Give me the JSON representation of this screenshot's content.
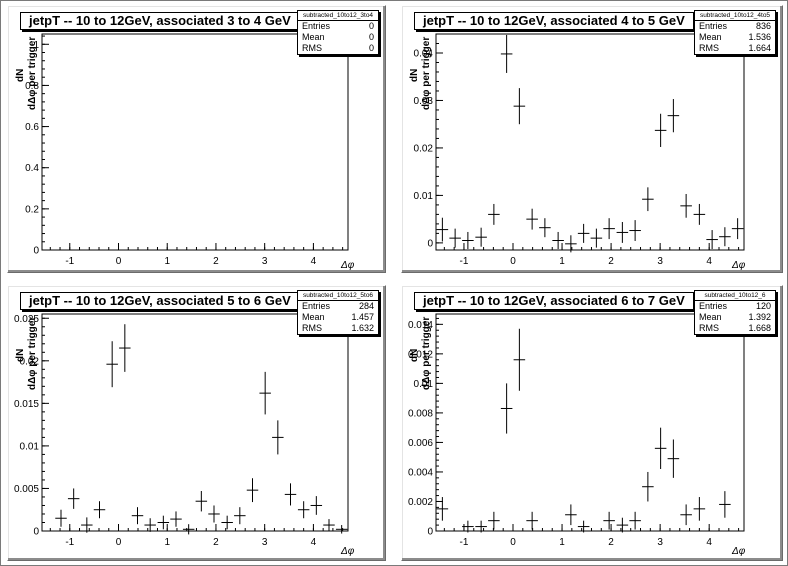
{
  "ylabel": {
    "numerator": "dN",
    "denominator": "dΔφ per trigger"
  },
  "xlabel": "Δφ",
  "stat_labels": {
    "entries": "Entries",
    "mean": "Mean",
    "rms": "RMS"
  },
  "chart_data": [
    {
      "type": "scatter",
      "title": "jetpT -- 10 to 12GeV, associated 3 to 4 GeV",
      "hist_name": "subtracted_10to12_3to4",
      "stats": {
        "entries": "0",
        "mean": "0",
        "rms": "0"
      },
      "xlim": [
        -1.57,
        4.71
      ],
      "ylim": [
        0,
        1.05
      ],
      "xticks": [
        "-1",
        "0",
        "1",
        "2",
        "3",
        "4"
      ],
      "xtick_values": [
        -1,
        0,
        1,
        2,
        3,
        4
      ],
      "yticks": [
        "0",
        "0.2",
        "0.4",
        "0.6",
        "0.8",
        "1"
      ],
      "ytick_values": [
        0,
        0.2,
        0.4,
        0.6,
        0.8,
        1
      ],
      "points": []
    },
    {
      "type": "scatter",
      "title": "jetpT -- 10 to 12GeV, associated 4 to 5 GeV",
      "hist_name": "subtracted_10to12_4to5",
      "stats": {
        "entries": "836",
        "mean": "1.536",
        "rms": "1.664"
      },
      "xlim": [
        -1.57,
        4.71
      ],
      "ylim": [
        -0.0015,
        0.044
      ],
      "xticks": [
        "-1",
        "0",
        "1",
        "2",
        "3",
        "4"
      ],
      "xtick_values": [
        -1,
        0,
        1,
        2,
        3,
        4
      ],
      "yticks": [
        "0",
        "0.01",
        "0.02",
        "0.03",
        "0.04"
      ],
      "ytick_values": [
        0,
        0.01,
        0.02,
        0.03,
        0.04
      ],
      "points": [
        {
          "x": -1.44,
          "y": 0.0028,
          "err": 0.0025
        },
        {
          "x": -1.18,
          "y": 0.001,
          "err": 0.002
        },
        {
          "x": -0.92,
          "y": 0.0005,
          "err": 0.0018
        },
        {
          "x": -0.65,
          "y": 0.0012,
          "err": 0.002
        },
        {
          "x": -0.39,
          "y": 0.006,
          "err": 0.0022
        },
        {
          "x": -0.13,
          "y": 0.0398,
          "err": 0.004
        },
        {
          "x": 0.13,
          "y": 0.0288,
          "err": 0.0038
        },
        {
          "x": 0.39,
          "y": 0.005,
          "err": 0.0022
        },
        {
          "x": 0.65,
          "y": 0.0032,
          "err": 0.002
        },
        {
          "x": 0.92,
          "y": 0.0005,
          "err": 0.0018
        },
        {
          "x": 1.18,
          "y": -0.0002,
          "err": 0.0018
        },
        {
          "x": 1.44,
          "y": 0.002,
          "err": 0.002
        },
        {
          "x": 1.7,
          "y": 0.001,
          "err": 0.002
        },
        {
          "x": 1.96,
          "y": 0.003,
          "err": 0.0022
        },
        {
          "x": 2.23,
          "y": 0.0022,
          "err": 0.0022
        },
        {
          "x": 2.49,
          "y": 0.0026,
          "err": 0.0022
        },
        {
          "x": 2.75,
          "y": 0.0092,
          "err": 0.0025
        },
        {
          "x": 3.01,
          "y": 0.0237,
          "err": 0.0035
        },
        {
          "x": 3.27,
          "y": 0.0268,
          "err": 0.0035
        },
        {
          "x": 3.53,
          "y": 0.0078,
          "err": 0.0025
        },
        {
          "x": 3.8,
          "y": 0.006,
          "err": 0.0022
        },
        {
          "x": 4.06,
          "y": 0.0007,
          "err": 0.002
        },
        {
          "x": 4.32,
          "y": 0.0013,
          "err": 0.002
        },
        {
          "x": 4.58,
          "y": 0.003,
          "err": 0.0022
        }
      ]
    },
    {
      "type": "scatter",
      "title": "jetpT -- 10 to 12GeV, associated 5 to 6 GeV",
      "hist_name": "subtracted_10to12_5to6",
      "stats": {
        "entries": "284",
        "mean": "1.457",
        "rms": "1.632"
      },
      "xlim": [
        -1.57,
        4.71
      ],
      "ylim": [
        0,
        0.0255
      ],
      "xticks": [
        "-1",
        "0",
        "1",
        "2",
        "3",
        "4"
      ],
      "xtick_values": [
        -1,
        0,
        1,
        2,
        3,
        4
      ],
      "yticks": [
        "0",
        "0.005",
        "0.01",
        "0.015",
        "0.02",
        "0.025"
      ],
      "ytick_values": [
        0,
        0.005,
        0.01,
        0.015,
        0.02,
        0.025
      ],
      "points": [
        {
          "x": -1.18,
          "y": 0.0015,
          "err": 0.001
        },
        {
          "x": -0.92,
          "y": 0.0038,
          "err": 0.0012
        },
        {
          "x": -0.65,
          "y": 0.0007,
          "err": 0.0009
        },
        {
          "x": -0.39,
          "y": 0.0025,
          "err": 0.001
        },
        {
          "x": -0.13,
          "y": 0.0196,
          "err": 0.0027
        },
        {
          "x": 0.13,
          "y": 0.0215,
          "err": 0.0028
        },
        {
          "x": 0.39,
          "y": 0.0018,
          "err": 0.001
        },
        {
          "x": 0.65,
          "y": 0.0007,
          "err": 0.0008
        },
        {
          "x": 0.92,
          "y": 0.001,
          "err": 0.0008
        },
        {
          "x": 1.18,
          "y": 0.0014,
          "err": 0.0009
        },
        {
          "x": 1.44,
          "y": 0.0002,
          "err": 0.0006
        },
        {
          "x": 1.7,
          "y": 0.0035,
          "err": 0.0012
        },
        {
          "x": 1.96,
          "y": 0.002,
          "err": 0.001
        },
        {
          "x": 2.23,
          "y": 0.001,
          "err": 0.0008
        },
        {
          "x": 2.49,
          "y": 0.0018,
          "err": 0.001
        },
        {
          "x": 2.75,
          "y": 0.0048,
          "err": 0.0014
        },
        {
          "x": 3.01,
          "y": 0.0162,
          "err": 0.0025
        },
        {
          "x": 3.27,
          "y": 0.011,
          "err": 0.002
        },
        {
          "x": 3.53,
          "y": 0.0043,
          "err": 0.0013
        },
        {
          "x": 3.8,
          "y": 0.0025,
          "err": 0.001
        },
        {
          "x": 4.06,
          "y": 0.003,
          "err": 0.0011
        },
        {
          "x": 4.32,
          "y": 0.0007,
          "err": 0.0007
        },
        {
          "x": 4.58,
          "y": 0.0002,
          "err": 0.0005
        }
      ]
    },
    {
      "type": "scatter",
      "title": "jetpT -- 10 to 12GeV, associated 6 to 7 GeV",
      "hist_name": "subtracted_10to12_6",
      "stats": {
        "entries": "120",
        "mean": "1.392",
        "rms": "1.668"
      },
      "xlim": [
        -1.57,
        4.71
      ],
      "ylim": [
        0,
        0.0147
      ],
      "xticks": [
        "-1",
        "0",
        "1",
        "2",
        "3",
        "4"
      ],
      "xtick_values": [
        -1,
        0,
        1,
        2,
        3,
        4
      ],
      "yticks": [
        "0",
        "0.002",
        "0.004",
        "0.006",
        "0.008",
        "0.01",
        "0.012",
        "0.014"
      ],
      "ytick_values": [
        0,
        0.002,
        0.004,
        0.006,
        0.008,
        0.01,
        0.012,
        0.014
      ],
      "points": [
        {
          "x": -1.44,
          "y": 0.0015,
          "err": 0.0008
        },
        {
          "x": -0.92,
          "y": 0.0003,
          "err": 0.0004
        },
        {
          "x": -0.65,
          "y": 0.0003,
          "err": 0.0004
        },
        {
          "x": -0.39,
          "y": 0.0007,
          "err": 0.0006
        },
        {
          "x": -0.13,
          "y": 0.0083,
          "err": 0.0017
        },
        {
          "x": 0.13,
          "y": 0.0116,
          "err": 0.0021
        },
        {
          "x": 0.39,
          "y": 0.0007,
          "err": 0.0006
        },
        {
          "x": 1.18,
          "y": 0.0011,
          "err": 0.0007
        },
        {
          "x": 1.44,
          "y": 0.0003,
          "err": 0.0004
        },
        {
          "x": 1.96,
          "y": 0.0007,
          "err": 0.0006
        },
        {
          "x": 2.23,
          "y": 0.0004,
          "err": 0.0005
        },
        {
          "x": 2.49,
          "y": 0.0007,
          "err": 0.0006
        },
        {
          "x": 2.75,
          "y": 0.003,
          "err": 0.001
        },
        {
          "x": 3.01,
          "y": 0.0056,
          "err": 0.0014
        },
        {
          "x": 3.27,
          "y": 0.0049,
          "err": 0.0013
        },
        {
          "x": 3.53,
          "y": 0.0011,
          "err": 0.0007
        },
        {
          "x": 3.8,
          "y": 0.0015,
          "err": 0.0008
        },
        {
          "x": 4.32,
          "y": 0.0018,
          "err": 0.0009
        }
      ]
    }
  ]
}
